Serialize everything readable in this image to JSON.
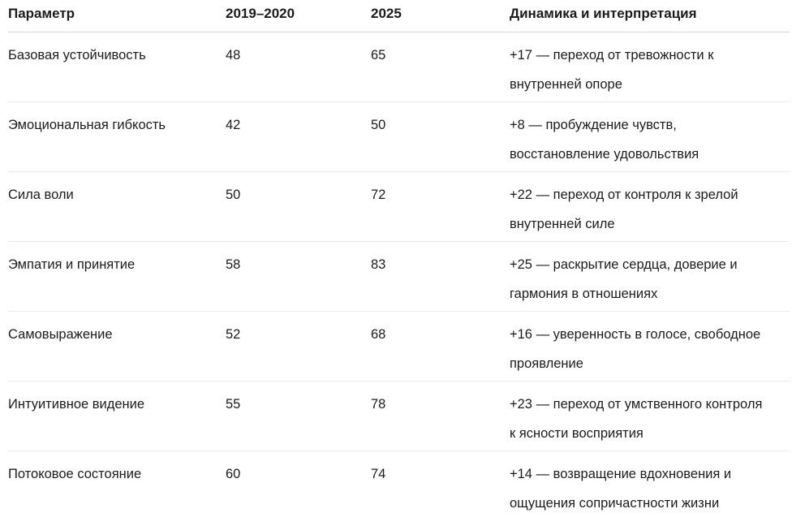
{
  "table": {
    "columns": [
      {
        "label": "Параметр"
      },
      {
        "label": "2019–2020"
      },
      {
        "label": "2025"
      },
      {
        "label": "Динамика и интерпретация"
      }
    ],
    "rows": [
      {
        "param": "Базовая устойчивость",
        "v2019": "48",
        "v2025": "65",
        "dynamics": "+17 — переход от тревожности к\nвнутренней опоре"
      },
      {
        "param": "Эмоциональная гибкость",
        "v2019": "42",
        "v2025": "50",
        "dynamics": "+8 — пробуждение чувств,\nвосстановление удовольствия"
      },
      {
        "param": "Сила воли",
        "v2019": "50",
        "v2025": "72",
        "dynamics": "+22 — переход от контроля к зрелой\nвнутренней силе"
      },
      {
        "param": "Эмпатия и принятие",
        "v2019": "58",
        "v2025": "83",
        "dynamics": "+25 — раскрытие сердца, доверие и\nгармония в отношениях"
      },
      {
        "param": "Самовыражение",
        "v2019": "52",
        "v2025": "68",
        "dynamics": "+16 — уверенность в голосе, свободное\nпроявление"
      },
      {
        "param": "Интуитивное видение",
        "v2019": "55",
        "v2025": "78",
        "dynamics": "+23 — переход от умственного контроля\nк ясности восприятия"
      },
      {
        "param": "Потоковое состояние",
        "v2019": "60",
        "v2025": "74",
        "dynamics": "+14 — возвращение вдохновения и\nощущения сопричастности жизни"
      }
    ],
    "text_color": "#1c1c1c",
    "header_divider_color": "#d6d6d6",
    "row_divider_color": "#ebebeb"
  }
}
